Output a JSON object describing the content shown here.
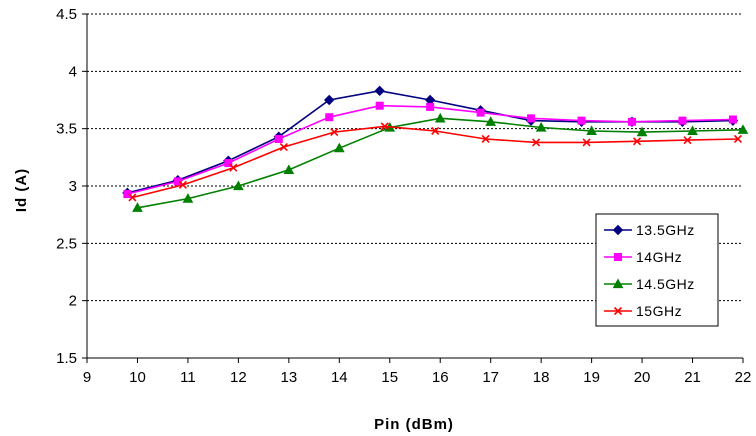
{
  "chart_data": {
    "type": "line",
    "xlabel": "Pin (dBm)",
    "ylabel": "Id (A)",
    "xlim": [
      9,
      22
    ],
    "ylim": [
      1.5,
      4.5
    ],
    "xticks": [
      "9",
      "10",
      "11",
      "12",
      "13",
      "14",
      "15",
      "16",
      "17",
      "18",
      "19",
      "20",
      "21",
      "22"
    ],
    "yticks": [
      "1.5",
      "2",
      "2.5",
      "3",
      "3.5",
      "4",
      "4.5"
    ],
    "grid": "horizontal",
    "legend_position": "right",
    "series": [
      {
        "name": "13.5GHz",
        "color": "#000080",
        "marker": "diamond",
        "x": [
          9.8,
          10.8,
          11.8,
          12.8,
          13.8,
          14.8,
          15.8,
          16.8,
          17.8,
          18.8,
          19.8,
          20.8,
          21.8
        ],
        "y": [
          2.94,
          3.05,
          3.22,
          3.43,
          3.75,
          3.83,
          3.75,
          3.66,
          3.57,
          3.56,
          3.56,
          3.56,
          3.57
        ]
      },
      {
        "name": "14GHz",
        "color": "#ff00ff",
        "marker": "square",
        "x": [
          9.8,
          10.8,
          11.8,
          12.8,
          13.8,
          14.8,
          15.8,
          16.8,
          17.8,
          18.8,
          19.8,
          20.8,
          21.8
        ],
        "y": [
          2.93,
          3.04,
          3.2,
          3.41,
          3.6,
          3.7,
          3.69,
          3.64,
          3.59,
          3.57,
          3.56,
          3.57,
          3.58
        ]
      },
      {
        "name": "14.5GHz",
        "color": "#008000",
        "marker": "triangle",
        "x": [
          10,
          11,
          12,
          13,
          14,
          15,
          16,
          17,
          18,
          19,
          20,
          21,
          22
        ],
        "y": [
          2.81,
          2.89,
          3.0,
          3.14,
          3.33,
          3.51,
          3.59,
          3.56,
          3.51,
          3.48,
          3.47,
          3.48,
          3.49
        ]
      },
      {
        "name": "15GHz",
        "color": "#ff0000",
        "marker": "x",
        "x": [
          9.9,
          10.9,
          11.9,
          12.9,
          13.9,
          14.9,
          15.9,
          16.9,
          17.9,
          18.9,
          19.9,
          20.9,
          21.9
        ],
        "y": [
          2.9,
          3.01,
          3.16,
          3.34,
          3.47,
          3.52,
          3.48,
          3.41,
          3.38,
          3.38,
          3.39,
          3.4,
          3.41
        ]
      }
    ]
  }
}
